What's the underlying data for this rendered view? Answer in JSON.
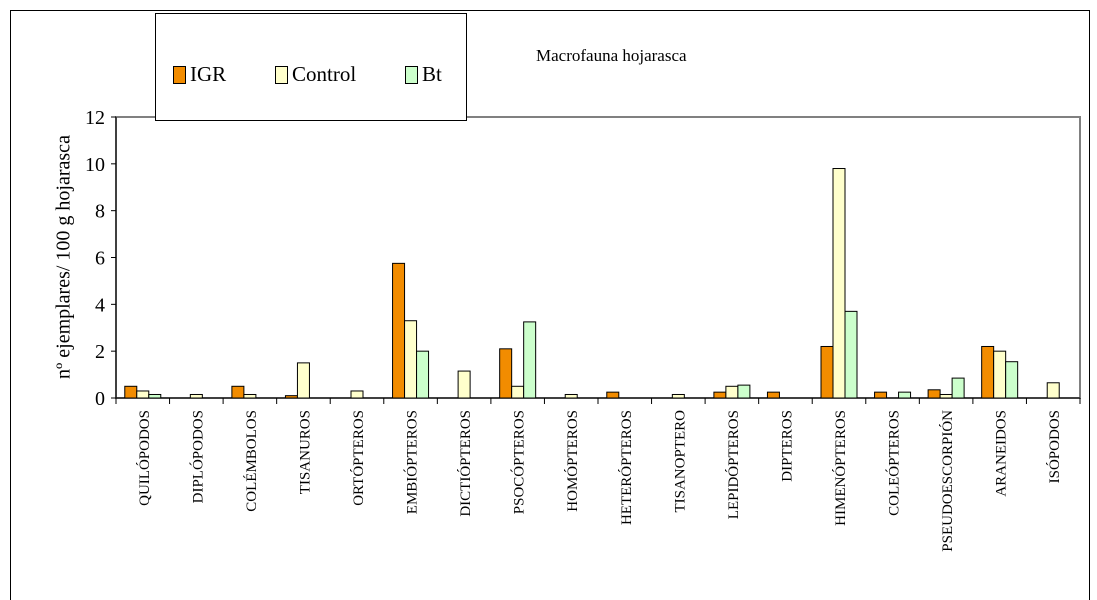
{
  "chart_data": {
    "type": "bar",
    "title": "Macrofauna hojarasca",
    "xlabel": "",
    "ylabel": "nº ejemplares/ 100 g hojarasca",
    "ylim": [
      0,
      12
    ],
    "yticks": [
      "0",
      "2",
      "4",
      "6",
      "8",
      "10",
      "12"
    ],
    "grid": false,
    "legend_position": "top-left",
    "categories": [
      "QUILÓPODOS",
      "DIPLÓPODOS",
      "COLÉMBOLOS",
      "TISANUROS",
      "ORTÓPTEROS",
      "EMBIÓPTEROS",
      "DICTIÓPTEROS",
      "PSOCÓPTEROS",
      "HOMÓPTEROS",
      "HETERÓPTEROS",
      "TISANOPTERO",
      "LEPIDÓPTEROS",
      "DIPTEROS",
      "HIMENÓPTEROS",
      "COLEÓPTEROS",
      "PSEUDOESCORPIÓN",
      "ARANEIDOS",
      "ISÓPODOS"
    ],
    "series": [
      {
        "name": "IGR",
        "color": "#f28c00",
        "values": [
          0.5,
          0,
          0.5,
          0.1,
          0,
          5.75,
          0,
          2.1,
          0,
          0.25,
          0,
          0.25,
          0.25,
          2.2,
          0.25,
          0.35,
          2.2,
          0
        ]
      },
      {
        "name": "Control",
        "color": "#ffffcc",
        "values": [
          0.3,
          0.15,
          0.15,
          1.5,
          0.3,
          3.3,
          1.15,
          0.5,
          0.15,
          0,
          0.15,
          0.5,
          0,
          9.8,
          0,
          0.15,
          2.0,
          0.65
        ]
      },
      {
        "name": "Bt",
        "color": "#ccffcc",
        "values": [
          0.15,
          0,
          0,
          0,
          0,
          2.0,
          0,
          3.25,
          0,
          0,
          0,
          0.55,
          0,
          3.7,
          0.25,
          0.85,
          1.55,
          0
        ]
      }
    ]
  }
}
